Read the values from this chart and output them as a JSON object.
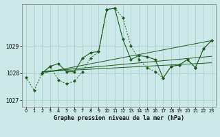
{
  "xlabel": "Graphe pression niveau de la mer (hPa)",
  "ylim": [
    1026.75,
    1030.55
  ],
  "xlim": [
    -0.5,
    23.5
  ],
  "yticks": [
    1027,
    1028,
    1029
  ],
  "xticks": [
    0,
    1,
    2,
    3,
    4,
    5,
    6,
    7,
    8,
    9,
    10,
    11,
    12,
    13,
    14,
    15,
    16,
    17,
    18,
    19,
    20,
    21,
    22,
    23
  ],
  "background_color": "#cce8e8",
  "grid_color": "#aacece",
  "line_color": "#1a5c1a",
  "line1_dotted": {
    "x": [
      0,
      1,
      2,
      3,
      4,
      5,
      6,
      7,
      8,
      9,
      10,
      11,
      12,
      13,
      14,
      15,
      16,
      17,
      18,
      19,
      20,
      21,
      22,
      23
    ],
    "y": [
      1027.85,
      1027.35,
      1028.0,
      1028.25,
      1027.75,
      1027.6,
      1027.7,
      1028.05,
      1028.55,
      1028.8,
      1030.35,
      1030.4,
      1030.05,
      1029.0,
      1028.5,
      1028.2,
      1028.05,
      1027.82,
      1028.25,
      1028.3,
      1028.5,
      1028.2,
      1028.9,
      1029.2
    ]
  },
  "line2_solid": {
    "x": [
      2,
      3,
      4,
      5,
      6,
      7,
      8,
      9,
      10,
      11,
      12,
      13,
      14,
      15,
      16,
      17,
      18,
      19,
      20,
      21,
      22,
      23
    ],
    "y": [
      1028.0,
      1028.25,
      1028.35,
      1028.05,
      1028.05,
      1028.55,
      1028.75,
      1028.8,
      1030.35,
      1030.4,
      1029.25,
      1028.5,
      1028.65,
      1028.6,
      1028.5,
      1027.82,
      1028.25,
      1028.3,
      1028.5,
      1028.2,
      1028.9,
      1029.2
    ]
  },
  "trend1": {
    "x": [
      2,
      23
    ],
    "y": [
      1028.0,
      1029.2
    ]
  },
  "trend2": {
    "x": [
      2,
      23
    ],
    "y": [
      1028.05,
      1028.62
    ]
  },
  "trend3": {
    "x": [
      2,
      23
    ],
    "y": [
      1028.05,
      1028.38
    ]
  }
}
